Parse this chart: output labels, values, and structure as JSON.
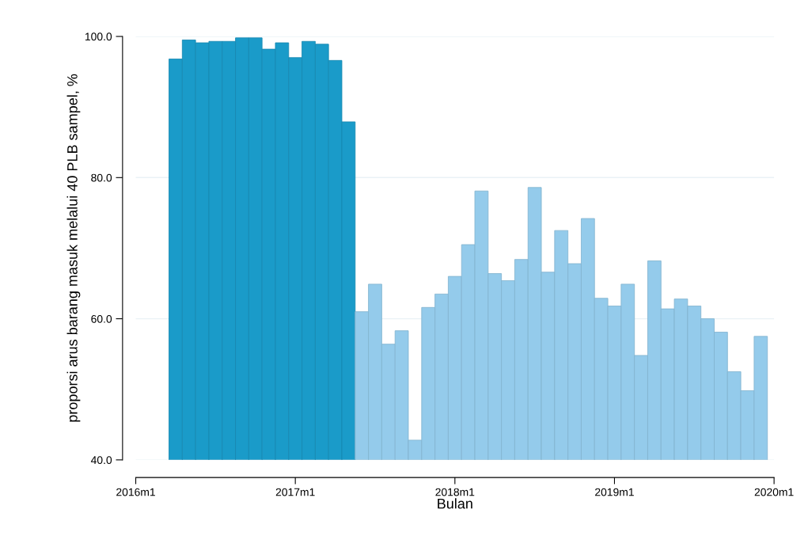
{
  "chart_data": {
    "type": "bar",
    "xlabel": "Bulan",
    "ylabel": "proporsi arus barang masuk melalui 40 PLB sampel, %",
    "x": [
      "2016-04",
      "2016-05",
      "2016-06",
      "2016-07",
      "2016-08",
      "2016-09",
      "2016-10",
      "2016-11",
      "2016-12",
      "2017-01",
      "2017-02",
      "2017-03",
      "2017-04",
      "2017-05",
      "2017-06",
      "2017-07",
      "2017-08",
      "2017-09",
      "2017-10",
      "2017-11",
      "2017-12",
      "2018-01",
      "2018-02",
      "2018-03",
      "2018-04",
      "2018-05",
      "2018-06",
      "2018-07",
      "2018-08",
      "2018-09",
      "2018-10",
      "2018-11",
      "2018-12",
      "2019-01",
      "2019-02",
      "2019-03",
      "2019-04",
      "2019-05",
      "2019-06",
      "2019-07",
      "2019-08",
      "2019-09",
      "2019-10",
      "2019-11",
      "2019-12"
    ],
    "values": [
      96.8,
      99.5,
      99.1,
      99.3,
      99.3,
      99.8,
      99.8,
      98.2,
      99.1,
      97.0,
      99.3,
      98.9,
      96.6,
      87.9,
      61.0,
      64.9,
      56.4,
      58.3,
      42.8,
      61.6,
      63.5,
      66.0,
      70.5,
      78.1,
      66.4,
      65.4,
      68.4,
      78.6,
      66.6,
      72.5,
      67.8,
      74.2,
      62.9,
      61.8,
      64.9,
      54.8,
      68.2,
      61.4,
      62.8,
      61.8,
      60.0,
      58.1,
      52.5,
      49.8,
      57.5
    ],
    "colors": [
      "#1a9bc9",
      "#1a9bc9",
      "#1a9bc9",
      "#1a9bc9",
      "#1a9bc9",
      "#1a9bc9",
      "#1a9bc9",
      "#1a9bc9",
      "#1a9bc9",
      "#1a9bc9",
      "#1a9bc9",
      "#1a9bc9",
      "#1a9bc9",
      "#1a9bc9",
      "#94cbeb",
      "#94cbeb",
      "#94cbeb",
      "#94cbeb",
      "#94cbeb",
      "#94cbeb",
      "#94cbeb",
      "#94cbeb",
      "#94cbeb",
      "#94cbeb",
      "#94cbeb",
      "#94cbeb",
      "#94cbeb",
      "#94cbeb",
      "#94cbeb",
      "#94cbeb",
      "#94cbeb",
      "#94cbeb",
      "#94cbeb",
      "#94cbeb",
      "#94cbeb",
      "#94cbeb",
      "#94cbeb",
      "#94cbeb",
      "#94cbeb",
      "#94cbeb",
      "#94cbeb",
      "#94cbeb",
      "#94cbeb",
      "#94cbeb",
      "#94cbeb"
    ],
    "xlim": [
      "2016-01",
      "2020-01"
    ],
    "xticks": [
      {
        "value": "2016-01",
        "label": "2016m1"
      },
      {
        "value": "2017-01",
        "label": "2017m1"
      },
      {
        "value": "2018-01",
        "label": "2018m1"
      },
      {
        "value": "2019-01",
        "label": "2019m1"
      },
      {
        "value": "2020-01",
        "label": "2020m1"
      }
    ],
    "ylim": [
      40,
      100
    ],
    "yticks": [
      {
        "value": 40,
        "label": "40.0"
      },
      {
        "value": 60,
        "label": "60.0"
      },
      {
        "value": 80,
        "label": "80.0"
      },
      {
        "value": 100,
        "label": "100.0"
      }
    ],
    "grid": "y",
    "legend": false
  }
}
